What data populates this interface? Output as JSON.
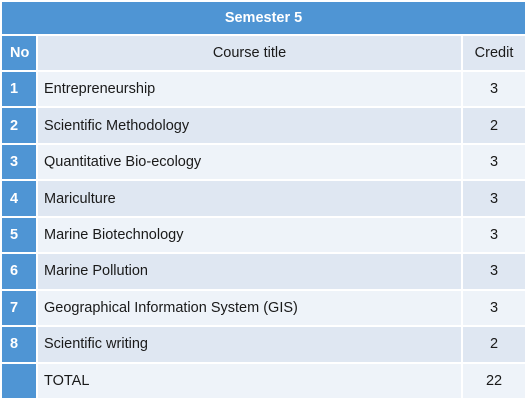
{
  "table": {
    "title": "Semester 5",
    "headers": {
      "no": "No",
      "course_title": "Course title",
      "credit": "Credit"
    },
    "rows": [
      {
        "no": "1",
        "course": "Entrepreneurship",
        "credit": "3"
      },
      {
        "no": "2",
        "course": "Scientific Methodology",
        "credit": "2"
      },
      {
        "no": "3",
        "course": "Quantitative Bio-ecology",
        "credit": "3"
      },
      {
        "no": "4",
        "course": "Mariculture",
        "credit": "3"
      },
      {
        "no": "5",
        "course": "Marine Biotechnology",
        "credit": "3"
      },
      {
        "no": "6",
        "course": "Marine Pollution",
        "credit": "3"
      },
      {
        "no": "7",
        "course": "Geographical Information System (GIS)",
        "credit": "3"
      },
      {
        "no": "8",
        "course": "Scientific writing",
        "credit": "2"
      }
    ],
    "total": {
      "no": "",
      "label": "TOTAL",
      "credit": "22"
    }
  },
  "colors": {
    "header_blue": "#4f95d4",
    "row_light": "#eef3f9",
    "row_dark": "#dfe7f2"
  }
}
